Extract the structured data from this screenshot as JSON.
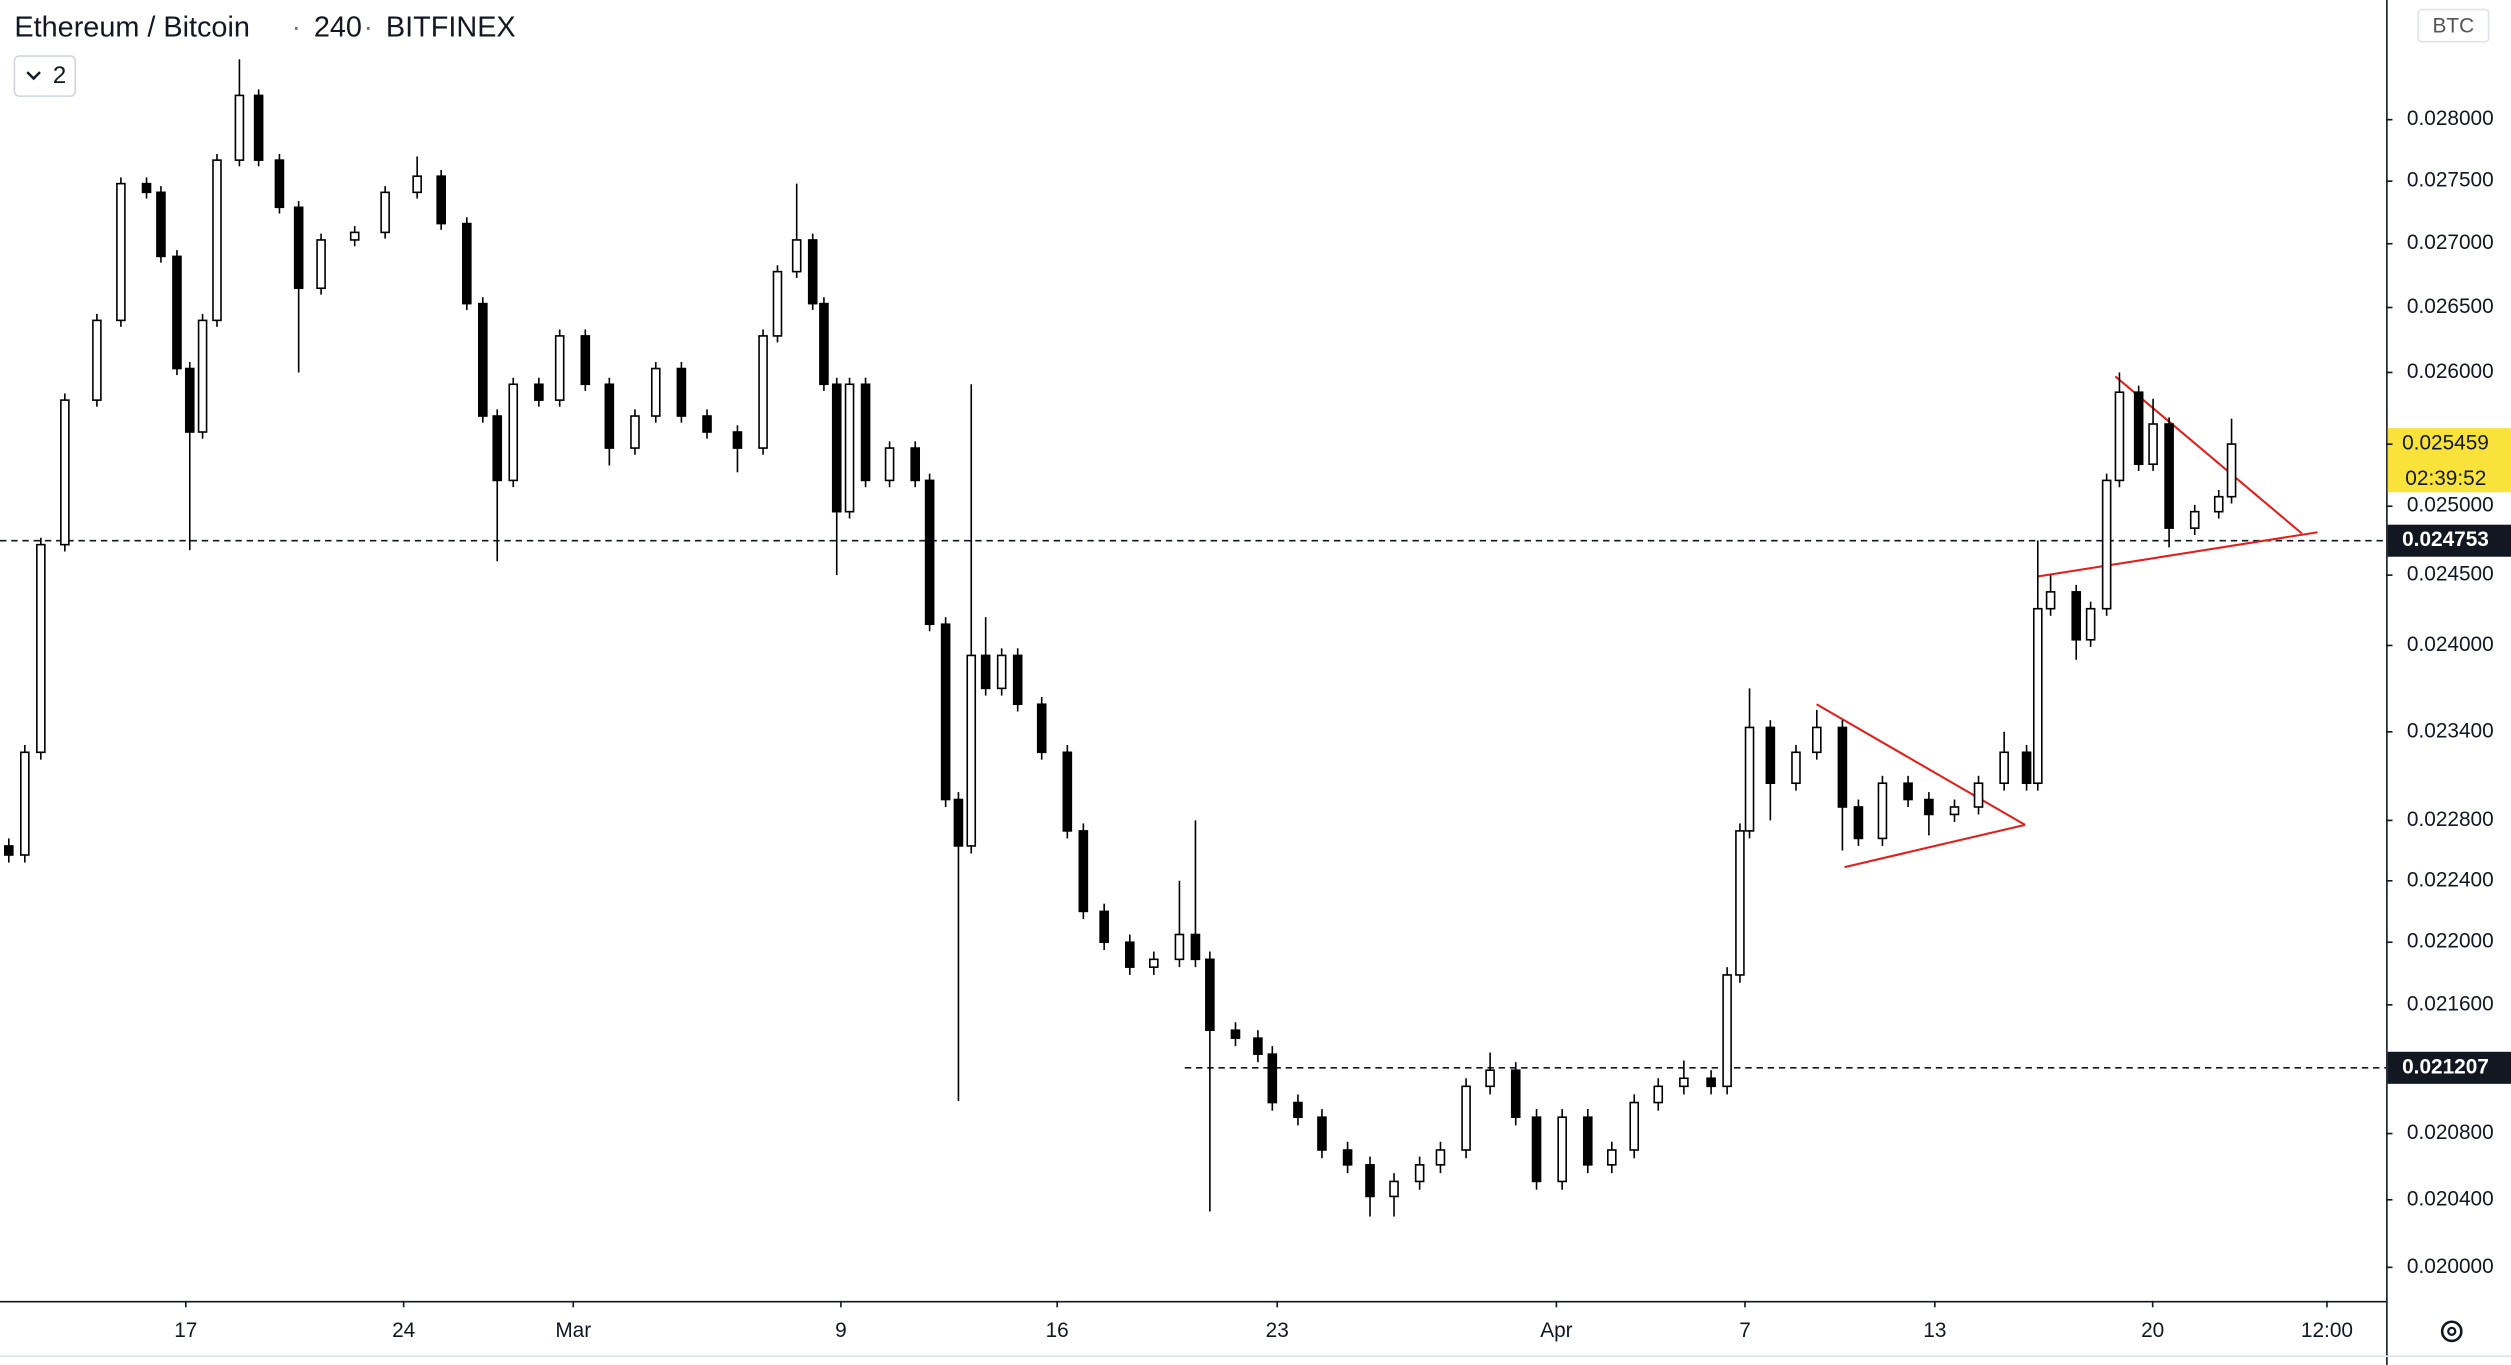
{
  "chart_data": {
    "type": "candlestick",
    "symbol": "Ethereum / Bitcoin",
    "interval": "240",
    "exchange": "BITFINEX",
    "indicator_count": "2",
    "currency": "BTC",
    "log_scale": true,
    "grid": false,
    "up_color": "#ffffff",
    "down_color": "#000000",
    "outline_color": "#000000",
    "drawing_color": "#e0201b",
    "xlim": [
      -5.97,
      70.7
    ],
    "xticks": [
      {
        "value": 0,
        "label": "17"
      },
      {
        "value": 7,
        "label": "24"
      },
      {
        "value": 12.45,
        "label": "Mar"
      },
      {
        "value": 21.05,
        "label": "9"
      },
      {
        "value": 28,
        "label": "16"
      },
      {
        "value": 35.07,
        "label": "23"
      },
      {
        "value": 44.04,
        "label": "Apr"
      },
      {
        "value": 50.1,
        "label": "7"
      },
      {
        "value": 56.2,
        "label": "13"
      },
      {
        "value": 63.2,
        "label": "20"
      },
      {
        "value": 68.8,
        "label": "12:00"
      }
    ],
    "ylim": [
      0.019804,
      0.029
    ],
    "yticks": [
      {
        "value": 0.028,
        "label": "0.028000"
      },
      {
        "value": 0.0275,
        "label": "0.027500"
      },
      {
        "value": 0.027,
        "label": "0.027000"
      },
      {
        "value": 0.0265,
        "label": "0.026500"
      },
      {
        "value": 0.026,
        "label": "0.026000"
      },
      {
        "value": 0.025,
        "label": "0.025000"
      },
      {
        "value": 0.0245,
        "label": "0.024500"
      },
      {
        "value": 0.024,
        "label": "0.024000"
      },
      {
        "value": 0.0234,
        "label": "0.023400"
      },
      {
        "value": 0.0228,
        "label": "0.022800"
      },
      {
        "value": 0.0224,
        "label": "0.022400"
      },
      {
        "value": 0.022,
        "label": "0.022000"
      },
      {
        "value": 0.0216,
        "label": "0.021600"
      },
      {
        "value": 0.0208,
        "label": "0.020800"
      },
      {
        "value": 0.0204,
        "label": "0.020400"
      },
      {
        "value": 0.02,
        "label": "0.020000"
      }
    ],
    "last_price": 0.025459,
    "countdown": "02:39:52",
    "price_lines": [
      {
        "value": 0.024753,
        "x_start": -5.97
      },
      {
        "value": 0.021207,
        "x_start": 32.1
      }
    ],
    "trend_lines": [
      {
        "x1": 52.4,
        "y1": 0.02359,
        "x2": 59.1,
        "y2": 0.02277
      },
      {
        "x1": 53.3,
        "y1": 0.02249,
        "x2": 59.1,
        "y2": 0.02277
      },
      {
        "x1": 62.0,
        "y1": 0.02597,
        "x2": 68.0,
        "y2": 0.0248
      },
      {
        "x1": 59.5,
        "y1": 0.02449,
        "x2": 68.5,
        "y2": 0.02481
      }
    ],
    "x": [
      -5.7,
      -5.2,
      -4.7,
      -3.9,
      -2.9,
      -2.1,
      -1.3,
      -0.8,
      -0.3,
      0.1,
      0.5,
      1.0,
      1.7,
      2.3,
      3.0,
      3.6,
      4.3,
      5.4,
      6.4,
      7.4,
      8.2,
      9.0,
      9.5,
      10.0,
      10.5,
      11.3,
      12.0,
      12.8,
      13.6,
      14.4,
      15.1,
      15.9,
      16.7,
      17.7,
      18.5,
      19.0,
      19.6,
      20.1,
      20.5,
      20.9,
      21.3,
      21.8,
      22.6,
      23.4,
      23.9,
      24.4,
      24.8,
      25.2,
      25.7,
      26.2,
      26.7,
      27.5,
      28.3,
      28.8,
      29.5,
      30.3,
      31.1,
      31.9,
      32.4,
      32.9,
      33.7,
      34.4,
      34.9,
      35.7,
      36.5,
      37.3,
      38.0,
      38.8,
      39.6,
      40.3,
      41.1,
      41.9,
      42.7,
      43.4,
      44.2,
      45.0,
      45.8,
      46.5,
      47.3,
      48.1,
      49.0,
      49.5,
      49.9,
      50.2,
      50.9,
      51.7,
      52.4,
      53.2,
      53.7,
      54.5,
      55.3,
      56.0,
      56.8,
      57.6,
      58.4,
      59.1,
      59.5,
      59.9,
      60.7,
      61.2,
      61.7,
      62.1,
      62.7,
      63.2,
      63.7,
      64.5,
      65.3,
      65.7
    ],
    "open": [
      0.02263,
      0.02257,
      0.02326,
      0.02472,
      0.02579,
      0.0264,
      0.02748,
      0.02741,
      0.0269,
      0.02603,
      0.02555,
      0.0264,
      0.02767,
      0.0282,
      0.02767,
      0.02729,
      0.02665,
      0.02703,
      0.02709,
      0.02741,
      0.02754,
      0.02716,
      0.02653,
      0.02567,
      0.02519,
      0.02591,
      0.02579,
      0.02628,
      0.02591,
      0.02543,
      0.02567,
      0.02603,
      0.02567,
      0.02555,
      0.02543,
      0.02628,
      0.02678,
      0.02703,
      0.02653,
      0.02591,
      0.02496,
      0.02591,
      0.02519,
      0.02543,
      0.02519,
      0.02415,
      0.02294,
      0.02263,
      0.02393,
      0.0237,
      0.02393,
      0.02359,
      0.02326,
      0.02273,
      0.0222,
      0.022,
      0.02184,
      0.02189,
      0.02205,
      0.02189,
      0.02144,
      0.02139,
      0.02129,
      0.02099,
      0.0209,
      0.0207,
      0.02061,
      0.02042,
      0.02051,
      0.02061,
      0.0207,
      0.02109,
      0.02119,
      0.0209,
      0.02051,
      0.0209,
      0.02061,
      0.0207,
      0.02099,
      0.02109,
      0.02114,
      0.02109,
      0.02179,
      0.02273,
      0.02343,
      0.02305,
      0.02326,
      0.02343,
      0.02289,
      0.02268,
      0.02305,
      0.02294,
      0.02284,
      0.02289,
      0.02305,
      0.02326,
      0.02305,
      0.02426,
      0.02438,
      0.02404,
      0.02426,
      0.02519,
      0.02585,
      0.02531,
      0.02561,
      0.02484,
      0.02496,
      0.02507
    ],
    "high": [
      0.02268,
      0.02331,
      0.02477,
      0.02584,
      0.02645,
      0.02753,
      0.02753,
      0.02746,
      0.02695,
      0.02608,
      0.02645,
      0.02772,
      0.0285,
      0.02825,
      0.02772,
      0.02734,
      0.02708,
      0.02714,
      0.02746,
      0.0277,
      0.02759,
      0.02721,
      0.02658,
      0.02572,
      0.02596,
      0.02596,
      0.02633,
      0.02633,
      0.02596,
      0.02572,
      0.02608,
      0.02608,
      0.02572,
      0.0256,
      0.02633,
      0.02683,
      0.02748,
      0.02708,
      0.02658,
      0.02596,
      0.02596,
      0.02596,
      0.02548,
      0.02548,
      0.02524,
      0.0242,
      0.02299,
      0.02591,
      0.0242,
      0.02398,
      0.02398,
      0.02364,
      0.02331,
      0.02278,
      0.02225,
      0.02205,
      0.02194,
      0.0224,
      0.0228,
      0.02194,
      0.02149,
      0.02144,
      0.02134,
      0.02104,
      0.02095,
      0.02075,
      0.02066,
      0.02056,
      0.02066,
      0.02075,
      0.02114,
      0.0213,
      0.02124,
      0.02095,
      0.02095,
      0.02095,
      0.02075,
      0.02104,
      0.02114,
      0.02125,
      0.02119,
      0.02184,
      0.02278,
      0.0237,
      0.02348,
      0.02331,
      0.02355,
      0.02348,
      0.02294,
      0.0231,
      0.0231,
      0.02299,
      0.02294,
      0.0231,
      0.0234,
      0.02331,
      0.02475,
      0.0245,
      0.02443,
      0.02431,
      0.02524,
      0.026,
      0.0259,
      0.0258,
      0.02566,
      0.02501,
      0.02512,
      0.02565
    ],
    "low": [
      0.02252,
      0.02252,
      0.02321,
      0.02467,
      0.02574,
      0.02635,
      0.02736,
      0.02685,
      0.02598,
      0.02468,
      0.0255,
      0.02635,
      0.02762,
      0.02762,
      0.02724,
      0.026,
      0.0266,
      0.02698,
      0.02704,
      0.02736,
      0.02711,
      0.02648,
      0.02562,
      0.0246,
      0.02514,
      0.02574,
      0.02574,
      0.02586,
      0.0253,
      0.02538,
      0.02562,
      0.02562,
      0.0255,
      0.02525,
      0.02538,
      0.02623,
      0.02673,
      0.02648,
      0.02586,
      0.0245,
      0.02491,
      0.02514,
      0.02514,
      0.02514,
      0.0241,
      0.02289,
      0.021,
      0.02258,
      0.02365,
      0.02365,
      0.02354,
      0.02321,
      0.02268,
      0.02215,
      0.02195,
      0.02179,
      0.02179,
      0.02184,
      0.02184,
      0.02033,
      0.02134,
      0.02124,
      0.02094,
      0.02085,
      0.02065,
      0.02056,
      0.0203,
      0.0203,
      0.02046,
      0.02056,
      0.02065,
      0.02104,
      0.02085,
      0.02046,
      0.02046,
      0.02056,
      0.02056,
      0.02065,
      0.02094,
      0.02104,
      0.02104,
      0.02104,
      0.02174,
      0.02268,
      0.0228,
      0.023,
      0.02321,
      0.0226,
      0.02263,
      0.02263,
      0.02289,
      0.0227,
      0.02279,
      0.02284,
      0.023,
      0.023,
      0.023,
      0.02421,
      0.0239,
      0.02399,
      0.02421,
      0.02514,
      0.02526,
      0.02526,
      0.0247,
      0.02479,
      0.02491,
      0.02502
    ],
    "close": [
      0.02257,
      0.02326,
      0.02472,
      0.02579,
      0.0264,
      0.02748,
      0.02741,
      0.0269,
      0.02603,
      0.02555,
      0.0264,
      0.02767,
      0.0282,
      0.02767,
      0.02729,
      0.02665,
      0.02703,
      0.02709,
      0.02741,
      0.02754,
      0.02716,
      0.02653,
      0.02567,
      0.02519,
      0.02591,
      0.02579,
      0.02628,
      0.02591,
      0.02543,
      0.02567,
      0.02603,
      0.02567,
      0.02555,
      0.02543,
      0.02628,
      0.02678,
      0.02703,
      0.02653,
      0.02591,
      0.02496,
      0.02591,
      0.02519,
      0.02543,
      0.02519,
      0.02415,
      0.02294,
      0.02263,
      0.02393,
      0.0237,
      0.02393,
      0.02359,
      0.02326,
      0.02273,
      0.0222,
      0.022,
      0.02184,
      0.02189,
      0.02205,
      0.02189,
      0.02144,
      0.02139,
      0.02129,
      0.02099,
      0.0209,
      0.0207,
      0.02061,
      0.02042,
      0.02051,
      0.02061,
      0.0207,
      0.02109,
      0.02119,
      0.0209,
      0.02051,
      0.0209,
      0.02061,
      0.0207,
      0.02099,
      0.02109,
      0.02114,
      0.02109,
      0.02179,
      0.02273,
      0.02343,
      0.02305,
      0.02326,
      0.02343,
      0.02289,
      0.02268,
      0.02305,
      0.02294,
      0.02284,
      0.02289,
      0.02305,
      0.02326,
      0.02305,
      0.02426,
      0.02438,
      0.02404,
      0.02426,
      0.02519,
      0.02585,
      0.02531,
      0.02561,
      0.02484,
      0.02496,
      0.02507,
      0.02546
    ]
  }
}
